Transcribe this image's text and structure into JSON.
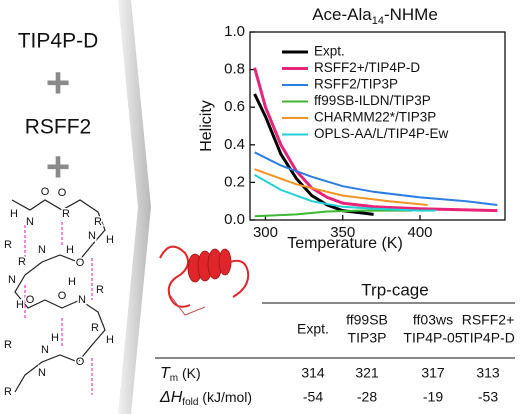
{
  "left": {
    "water": "TIP4P-D",
    "plus1": "+",
    "forcefield": "RSFF2",
    "plus2": "+",
    "molecule_atoms": [
      "O",
      "R",
      "H",
      "N",
      "O",
      "R",
      "H",
      "N",
      "R",
      "O",
      "H",
      "N",
      "R",
      "O",
      "N",
      "H",
      "R",
      "O",
      "H",
      "N",
      "R",
      "O",
      "N",
      "H",
      "R",
      "R",
      "H",
      "N"
    ]
  },
  "chart_data": {
    "type": "line",
    "title": [
      "Ace-Ala",
      "14",
      "-NHMe"
    ],
    "xlabel": "Temperature (K)",
    "ylabel": "Helicity",
    "xlim": [
      290,
      455
    ],
    "ylim": [
      0,
      1
    ],
    "xticks": [
      300,
      350,
      400
    ],
    "yticks": [
      {
        "value": 0,
        "label": "0.0"
      },
      {
        "value": 0.2,
        "label": "0.2"
      },
      {
        "value": 0.4,
        "label": "0.4"
      },
      {
        "value": 0.6,
        "label": "0.6"
      },
      {
        "value": 0.8,
        "label": "0.8"
      },
      {
        "value": 1,
        "label": "1.0"
      }
    ],
    "legend": "upper right",
    "series": [
      {
        "name": "Expt.",
        "color": "#000000",
        "x": [
          293,
          300,
          310,
          320,
          330,
          340,
          350,
          360,
          370
        ],
        "values": [
          0.67,
          0.55,
          0.35,
          0.22,
          0.13,
          0.08,
          0.05,
          0.04,
          0.03
        ]
      },
      {
        "name": "RSFF2+/TIP4P-D",
        "color": "#e8247a",
        "x": [
          293,
          300,
          310,
          320,
          330,
          340,
          350,
          370,
          400,
          450
        ],
        "values": [
          0.81,
          0.6,
          0.4,
          0.26,
          0.17,
          0.12,
          0.09,
          0.07,
          0.06,
          0.05
        ]
      },
      {
        "name": "RSFF2/TIP3P",
        "color": "#2a7de1",
        "x": [
          293,
          310,
          330,
          350,
          370,
          400,
          430,
          450
        ],
        "values": [
          0.36,
          0.29,
          0.23,
          0.18,
          0.15,
          0.12,
          0.1,
          0.08
        ]
      },
      {
        "name": "ff99SB-ILDN/TIP3P",
        "color": "#3cb832",
        "x": [
          293,
          320,
          340,
          360,
          380,
          395
        ],
        "values": [
          0.02,
          0.03,
          0.045,
          0.05,
          0.05,
          0.05
        ]
      },
      {
        "name": "CHARMM22*/TIP3P",
        "color": "#f39325",
        "x": [
          293,
          320,
          350,
          380,
          405
        ],
        "values": [
          0.27,
          0.19,
          0.13,
          0.1,
          0.08
        ]
      },
      {
        "name": "OPLS-AA/L/TIP4P-Ew",
        "color": "#22d0d6",
        "x": [
          293,
          310,
          330,
          350,
          370,
          400,
          410
        ],
        "values": [
          0.24,
          0.16,
          0.1,
          0.07,
          0.06,
          0.05,
          0.05
        ]
      }
    ]
  },
  "table": {
    "title": "Trp-cage",
    "columns": [
      [
        "Expt."
      ],
      [
        "ff99SB",
        "TIP3P"
      ],
      [
        "ff03ws",
        "TIP4P-05"
      ],
      [
        "RSFF2+",
        "TIP4P-D"
      ]
    ],
    "rows": [
      {
        "label": [
          "T",
          "m",
          " (K)"
        ],
        "cells": [
          314,
          321,
          317,
          313
        ]
      },
      {
        "label": [
          "ΔH",
          "fold",
          " (kJ/mol)"
        ],
        "cells": [
          -54,
          -28,
          -19,
          -53
        ]
      }
    ]
  }
}
